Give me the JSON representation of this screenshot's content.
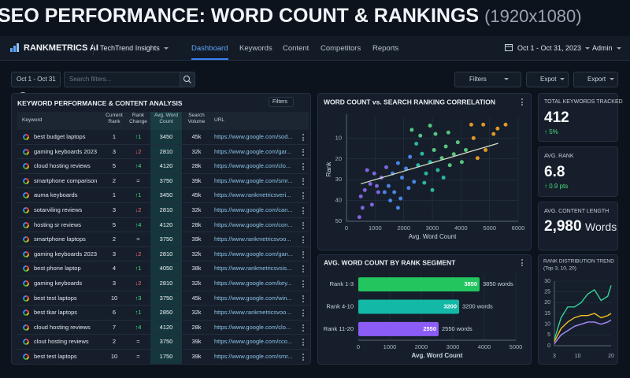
{
  "header": {
    "title": "SEO PERFORMANCE: WORD COUNT & RANKINGS",
    "resolution": "(1920x1080)"
  },
  "nav": {
    "brand": "RANKMETRICS AI",
    "workspace": "TechTrend Insights",
    "links": [
      "Dashboard",
      "Keywords",
      "Content",
      "Competitors",
      "Reports"
    ],
    "date_range": "Oct 1 - Oct 31, 2023",
    "user": "Admin"
  },
  "toolbar": {
    "date": "Oct 1 - Oct 31",
    "search_placeholder": "Search filters...",
    "buttons": [
      "Filters",
      "Expot",
      "Export"
    ]
  },
  "table": {
    "title": "KEYWORD PERFORMANCE & CONTENT ANALYSIS",
    "filter": "Filters",
    "columns": [
      "Keyword",
      "Current Rank",
      "Rank Change",
      "Avg. Word Count",
      "Search Volume",
      "URL"
    ],
    "rows": [
      [
        "best budget laptops",
        1,
        "↑1",
        3450,
        "45k",
        "https://www.google.com/sod..."
      ],
      [
        "gaming keyboards 2023",
        3,
        "↓2",
        2810,
        "32k",
        "https://www.google.com/gar..."
      ],
      [
        "cloud hosting reviews",
        5,
        "↑4",
        4120,
        "28k",
        "https://www.google.com/clo..."
      ],
      [
        "smartphone comparison",
        2,
        "=",
        3750,
        "39k",
        "https://www.google.com/smr..."
      ],
      [
        "auma keyboards",
        1,
        "↑1",
        3450,
        "45k",
        "https://www.rankmetricsveri..."
      ],
      [
        "sotarviling reviews",
        3,
        "↓2",
        2810,
        "32k",
        "https://www.google.com/can..."
      ],
      [
        "hosting sr reviews",
        5,
        "↑4",
        4120,
        "28k",
        "https://www.google.com/con..."
      ],
      [
        "smartphone laptops",
        2,
        "=",
        3750,
        "39k",
        "https://www.rankmetricsvoo..."
      ],
      [
        "gaming keyboards 2023",
        3,
        "↓2",
        2810,
        "32k",
        "https://www.google.com/gan..."
      ],
      [
        "best phone laptop",
        4,
        "↑1",
        4050,
        "38k",
        "https://www.rankmetricsvsis..."
      ],
      [
        "gaming keyboards",
        3,
        "↓2",
        2810,
        "32k",
        "https://www.google.com/key..."
      ],
      [
        "best test laptops",
        10,
        "↑3",
        3750,
        "45k",
        "https://www.google.com/win..."
      ],
      [
        "best tkar laptops",
        6,
        "↑1",
        2850,
        "32k",
        "https://www.rankmetricsvoo..."
      ],
      [
        "cloud hosting reviews",
        7,
        "↑4",
        4120,
        "28k",
        "https://www.google.com/clo..."
      ],
      [
        "clout hosting reviews",
        2,
        "=",
        3750,
        "39k",
        "https://www.google.com/cco..."
      ],
      [
        "best test laptops",
        10,
        "=",
        1750,
        "39k",
        "https://www.google.com/smr..."
      ]
    ]
  },
  "kpis": [
    {
      "label": "TOTAL KEYWORDS TRACKED",
      "value": "412",
      "delta": "↑ 5%"
    },
    {
      "label": "AVG. RANK",
      "value": "6.8",
      "delta": "↑ 0.9 pts"
    },
    {
      "label": "AVG. CONTENT LENGTH",
      "value": "2,980",
      "unit": "Words"
    }
  ],
  "chart_data": [
    {
      "type": "scatter",
      "title": "WORD COUNT vs. SEARCH RANKING CORRELATION",
      "x_label": "Avg. Word Count",
      "y_label": "Rank",
      "xlim": [
        0,
        6000
      ],
      "xticks": [
        0,
        1000,
        2000,
        3000,
        4000,
        5000,
        6000
      ],
      "ylim": [
        50,
        0
      ],
      "yticks": [
        10,
        20,
        30,
        40,
        50
      ],
      "grid": true,
      "series": [
        {
          "color": "#8b6cf0",
          "x": [
            450,
            560,
            640,
            720,
            830,
            500,
            970,
            1110,
            890,
            1220,
            1390,
            1060
          ],
          "values": [
            48,
            43.5,
            35,
            25.4,
            32,
            38,
            27,
            36,
            42,
            29,
            24,
            33
          ]
        },
        {
          "color": "#4f8ef7",
          "x": [
            1470,
            1610,
            1800,
            1670,
            1940,
            2080,
            2220,
            1890,
            2170,
            2360,
            1530,
            1800,
            1330
          ],
          "values": [
            33,
            27,
            22,
            36,
            29,
            24.6,
            19,
            39,
            34,
            31,
            40,
            43.5,
            36
          ]
        },
        {
          "color": "#2cc5b0",
          "x": [
            2500,
            2640,
            2780,
            2920,
            3000,
            2720,
            3190,
            3390,
            2440
          ],
          "values": [
            23,
            17.5,
            27,
            21.5,
            35,
            31.5,
            25.4,
            29,
            12.7
          ]
        },
        {
          "color": "#5fd68a",
          "x": [
            3060,
            3330,
            2280,
            2920,
            3470,
            3610,
            3750,
            3110,
            3890,
            4030,
            4170,
            2580,
            3560
          ],
          "values": [
            15.7,
            19.6,
            6,
            4,
            14,
            23,
            17.7,
            8,
            12,
            21.5,
            15.7,
            8.8,
            7.3
          ]
        },
        {
          "color": "#f5a524",
          "x": [
            4360,
            4780,
            5140,
            4440,
            4860,
            5280,
            4580,
            5560
          ],
          "values": [
            3.5,
            3.5,
            8,
            10,
            15.7,
            5.4,
            19.6,
            3.5
          ]
        }
      ],
      "trendline": {
        "color": "#d8e2c8",
        "x": [
          500,
          5300
        ],
        "values": [
          32,
          12.5
        ]
      }
    },
    {
      "type": "bar",
      "orientation": "horizontal",
      "title": "AVG. WORD COUNT BY RANK SEGMENT",
      "x_label": "Avg. Word Count",
      "categories": [
        "Rank 1-3",
        "Rank 4-10",
        "Rank 11-20"
      ],
      "values": [
        3850,
        3200,
        2550
      ],
      "value_labels": [
        "3850 words",
        "3200 words",
        "2550 words"
      ],
      "colors": [
        "#22c55e",
        "#14b8a6",
        "#8b5cf6"
      ],
      "xlim": [
        0,
        5000
      ],
      "xticks": [
        0,
        1000,
        2000,
        3000,
        4000,
        5000
      ],
      "grid": true
    },
    {
      "type": "line",
      "title": "RANK DISTRIBUTION TREND",
      "subtitle": "(Top 3, 10, 20)",
      "x": [
        3,
        5,
        7,
        9,
        11,
        13,
        15,
        17,
        19,
        20
      ],
      "xlim": [
        3,
        20
      ],
      "xticks": [
        3,
        10,
        20
      ],
      "ylim": [
        0,
        30
      ],
      "yticks": [
        0,
        5,
        10,
        15,
        20,
        25,
        30
      ],
      "grid": true,
      "series": [
        {
          "color": "#34d399",
          "values": [
            3,
            13,
            18,
            18,
            20,
            24,
            26,
            21,
            23,
            28
          ]
        },
        {
          "color": "#fbbf24",
          "values": [
            2,
            8,
            11,
            13,
            14,
            14,
            15,
            13,
            14,
            15
          ]
        },
        {
          "color": "#a78bfa",
          "values": [
            1,
            5,
            7,
            9,
            10,
            11,
            11,
            10,
            11,
            12
          ]
        }
      ]
    }
  ]
}
